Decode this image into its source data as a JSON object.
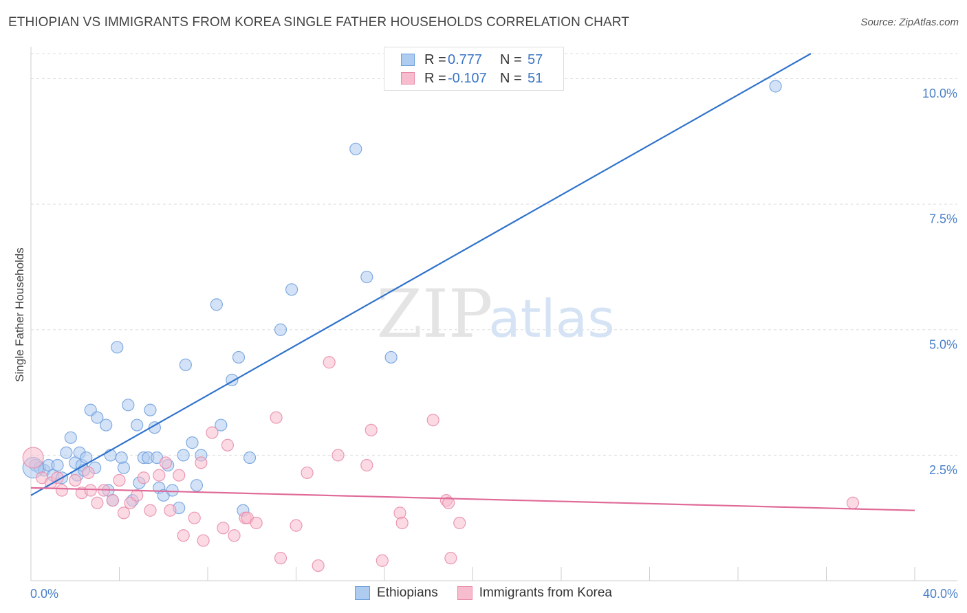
{
  "header": {
    "title": "ETHIOPIAN VS IMMIGRANTS FROM KOREA SINGLE FATHER HOUSEHOLDS CORRELATION CHART",
    "source": "Source: ZipAtlas.com"
  },
  "watermark": {
    "part1": "ZIP",
    "part2": "atlas"
  },
  "legend": {
    "rows": [
      {
        "r_label": "R =",
        "r_value": "0.777",
        "n_label": "N =",
        "n_value": "57"
      },
      {
        "r_label": "R =",
        "r_value": "-0.107",
        "n_label": "N =",
        "n_value": "51"
      }
    ]
  },
  "bottom_legend": [
    "Ethiopians",
    "Immigrants from Korea"
  ],
  "colors": {
    "blue_fill": "#aecbf0",
    "blue_stroke": "#6d9fdc",
    "blue_line": "#2f72cc",
    "pink_fill": "#f7bccd",
    "pink_stroke": "#e88aa8",
    "pink_line": "#e06a98",
    "tick_label": "#4a80c8",
    "grid": "#dddddd"
  },
  "chart_data": {
    "type": "scatter",
    "title": "ETHIOPIAN VS IMMIGRANTS FROM KOREA SINGLE FATHER HOUSEHOLDS CORRELATION CHART",
    "xlabel": "",
    "ylabel": "Single Father Households",
    "xlim": [
      0,
      40
    ],
    "ylim": [
      0,
      10.5
    ],
    "x_tick_labels": [
      {
        "value": 0,
        "label": "0.0%"
      },
      {
        "value": 40,
        "label": "40.0%"
      }
    ],
    "y_ticks": [
      {
        "value": 2.5,
        "label": "2.5%"
      },
      {
        "value": 5.0,
        "label": "5.0%"
      },
      {
        "value": 7.5,
        "label": "7.5%"
      },
      {
        "value": 10.0,
        "label": "10.0%"
      }
    ],
    "grid": true,
    "legend_position": "top-center",
    "series": [
      {
        "name": "Ethiopians",
        "r": 0.777,
        "n": 57,
        "trend": [
          [
            0,
            1.7
          ],
          [
            35.3,
            10.5
          ]
        ],
        "points": [
          [
            0.2,
            2.3
          ],
          [
            0.4,
            2.25
          ],
          [
            0.6,
            2.2
          ],
          [
            0.8,
            2.3
          ],
          [
            1.0,
            2.1
          ],
          [
            1.2,
            2.3
          ],
          [
            1.4,
            2.05
          ],
          [
            1.6,
            2.55
          ],
          [
            1.8,
            2.85
          ],
          [
            2.0,
            2.35
          ],
          [
            2.1,
            2.1
          ],
          [
            2.2,
            2.55
          ],
          [
            2.3,
            2.3
          ],
          [
            2.4,
            2.2
          ],
          [
            2.5,
            2.45
          ],
          [
            2.9,
            2.25
          ],
          [
            2.7,
            3.4
          ],
          [
            3.0,
            3.25
          ],
          [
            3.4,
            3.1
          ],
          [
            3.6,
            2.5
          ],
          [
            3.7,
            1.6
          ],
          [
            3.5,
            1.8
          ],
          [
            3.9,
            4.65
          ],
          [
            4.1,
            2.45
          ],
          [
            4.2,
            2.25
          ],
          [
            4.4,
            3.5
          ],
          [
            4.6,
            1.6
          ],
          [
            4.8,
            3.1
          ],
          [
            4.9,
            1.95
          ],
          [
            5.1,
            2.45
          ],
          [
            5.3,
            2.45
          ],
          [
            5.4,
            3.4
          ],
          [
            5.6,
            3.05
          ],
          [
            5.7,
            2.45
          ],
          [
            5.8,
            1.85
          ],
          [
            6.0,
            1.7
          ],
          [
            6.2,
            2.3
          ],
          [
            6.4,
            1.8
          ],
          [
            6.7,
            1.45
          ],
          [
            6.9,
            2.5
          ],
          [
            7.0,
            4.3
          ],
          [
            7.3,
            2.75
          ],
          [
            7.5,
            1.9
          ],
          [
            7.7,
            2.5
          ],
          [
            8.4,
            5.5
          ],
          [
            8.6,
            3.1
          ],
          [
            9.1,
            4.0
          ],
          [
            9.4,
            4.45
          ],
          [
            9.6,
            1.4
          ],
          [
            9.9,
            2.45
          ],
          [
            11.3,
            5.0
          ],
          [
            11.8,
            5.8
          ],
          [
            14.7,
            8.6
          ],
          [
            15.2,
            6.05
          ],
          [
            16.3,
            4.45
          ],
          [
            33.7,
            9.85
          ],
          [
            0.1,
            2.25
          ]
        ]
      },
      {
        "name": "Immigrants from Korea",
        "r": -0.107,
        "n": 51,
        "trend": [
          [
            0,
            1.85
          ],
          [
            40,
            1.4
          ]
        ],
        "points": [
          [
            0.1,
            2.45
          ],
          [
            0.5,
            2.05
          ],
          [
            0.9,
            1.95
          ],
          [
            1.2,
            2.05
          ],
          [
            1.4,
            1.8
          ],
          [
            2.0,
            2.0
          ],
          [
            2.3,
            1.75
          ],
          [
            2.6,
            2.15
          ],
          [
            2.7,
            1.8
          ],
          [
            3.0,
            1.55
          ],
          [
            3.3,
            1.8
          ],
          [
            3.7,
            1.6
          ],
          [
            4.0,
            2.0
          ],
          [
            4.2,
            1.35
          ],
          [
            4.5,
            1.55
          ],
          [
            4.8,
            1.7
          ],
          [
            5.1,
            2.05
          ],
          [
            5.4,
            1.4
          ],
          [
            5.8,
            2.1
          ],
          [
            6.1,
            2.35
          ],
          [
            6.3,
            1.4
          ],
          [
            6.7,
            2.1
          ],
          [
            6.9,
            0.9
          ],
          [
            7.4,
            1.25
          ],
          [
            7.7,
            2.35
          ],
          [
            7.8,
            0.8
          ],
          [
            8.2,
            2.95
          ],
          [
            8.7,
            1.05
          ],
          [
            8.9,
            2.7
          ],
          [
            9.2,
            0.9
          ],
          [
            9.7,
            1.25
          ],
          [
            9.8,
            1.25
          ],
          [
            10.2,
            1.15
          ],
          [
            11.1,
            3.25
          ],
          [
            11.3,
            0.45
          ],
          [
            12.0,
            1.1
          ],
          [
            12.5,
            2.15
          ],
          [
            13.0,
            0.3
          ],
          [
            13.5,
            4.35
          ],
          [
            13.9,
            2.5
          ],
          [
            15.2,
            2.3
          ],
          [
            15.4,
            3.0
          ],
          [
            15.9,
            0.4
          ],
          [
            16.7,
            1.35
          ],
          [
            16.8,
            1.15
          ],
          [
            18.2,
            3.2
          ],
          [
            18.8,
            1.6
          ],
          [
            18.9,
            1.55
          ],
          [
            19.0,
            0.45
          ],
          [
            19.4,
            1.15
          ],
          [
            37.2,
            1.55
          ]
        ]
      }
    ]
  }
}
